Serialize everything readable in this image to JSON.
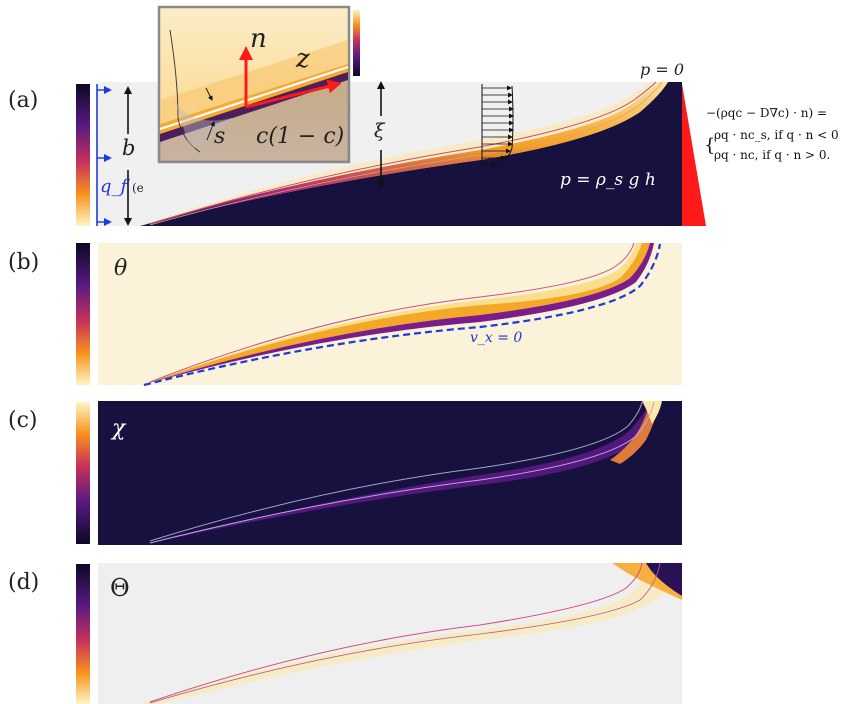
{
  "panels": {
    "a": {
      "label": "(a)"
    },
    "b": {
      "label": "(b)",
      "symbol": "θ",
      "annotation": "v_x = 0"
    },
    "c": {
      "label": "(c)",
      "symbol": "χ"
    },
    "d": {
      "label": "(d)",
      "symbol": "Θ"
    }
  },
  "panel_a": {
    "b_label": "b",
    "xi_label": "ξ",
    "qf_label": "q_f",
    "qf_suffix": "(e",
    "p_top": "p = 0",
    "p_bottom": "p = ρ_s g h",
    "inset": {
      "n": "n",
      "z": "z",
      "s": "s",
      "c_expr": "c(1 − c)"
    },
    "bc": {
      "line1": "−(ρqc − D∇c) · n) =",
      "line2": "ρq · nc_s,   if q · n < 0",
      "line3": "ρq · nc,     if q · n > 0."
    }
  },
  "colors": {
    "background_a": "#f0f0f0",
    "background_b": "#faf3d9",
    "background_c": "#17113f",
    "background_d": "#efefef",
    "blue_arrow": "#1f3ad8",
    "red": "#ff1a1a",
    "inferno_dark": "#160f3b",
    "inferno_purple": "#7a1d8a",
    "inferno_orange": "#f08a1a",
    "inferno_yellow": "#fbe8a6"
  }
}
